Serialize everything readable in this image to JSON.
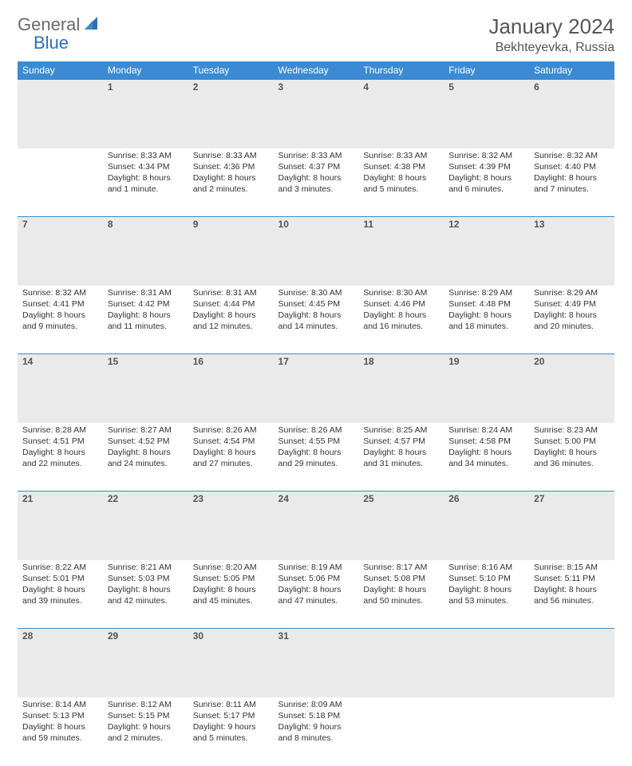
{
  "logo": {
    "part1": "General",
    "part2": "Blue"
  },
  "title": "January 2024",
  "location": "Bekhteyevka, Russia",
  "colors": {
    "header_bg": "#3b8bd4",
    "header_text": "#ffffff",
    "daynum_bg": "#eaeaea",
    "border": "#3b8bd4",
    "logo_gray": "#6a6a6a",
    "logo_blue": "#2f6fb3",
    "text": "#333333"
  },
  "weekdays": [
    "Sunday",
    "Monday",
    "Tuesday",
    "Wednesday",
    "Thursday",
    "Friday",
    "Saturday"
  ],
  "weeks": [
    [
      {
        "n": "",
        "sunrise": "",
        "sunset": "",
        "daylight": ""
      },
      {
        "n": "1",
        "sunrise": "Sunrise: 8:33 AM",
        "sunset": "Sunset: 4:34 PM",
        "daylight": "Daylight: 8 hours and 1 minute."
      },
      {
        "n": "2",
        "sunrise": "Sunrise: 8:33 AM",
        "sunset": "Sunset: 4:36 PM",
        "daylight": "Daylight: 8 hours and 2 minutes."
      },
      {
        "n": "3",
        "sunrise": "Sunrise: 8:33 AM",
        "sunset": "Sunset: 4:37 PM",
        "daylight": "Daylight: 8 hours and 3 minutes."
      },
      {
        "n": "4",
        "sunrise": "Sunrise: 8:33 AM",
        "sunset": "Sunset: 4:38 PM",
        "daylight": "Daylight: 8 hours and 5 minutes."
      },
      {
        "n": "5",
        "sunrise": "Sunrise: 8:32 AM",
        "sunset": "Sunset: 4:39 PM",
        "daylight": "Daylight: 8 hours and 6 minutes."
      },
      {
        "n": "6",
        "sunrise": "Sunrise: 8:32 AM",
        "sunset": "Sunset: 4:40 PM",
        "daylight": "Daylight: 8 hours and 7 minutes."
      }
    ],
    [
      {
        "n": "7",
        "sunrise": "Sunrise: 8:32 AM",
        "sunset": "Sunset: 4:41 PM",
        "daylight": "Daylight: 8 hours and 9 minutes."
      },
      {
        "n": "8",
        "sunrise": "Sunrise: 8:31 AM",
        "sunset": "Sunset: 4:42 PM",
        "daylight": "Daylight: 8 hours and 11 minutes."
      },
      {
        "n": "9",
        "sunrise": "Sunrise: 8:31 AM",
        "sunset": "Sunset: 4:44 PM",
        "daylight": "Daylight: 8 hours and 12 minutes."
      },
      {
        "n": "10",
        "sunrise": "Sunrise: 8:30 AM",
        "sunset": "Sunset: 4:45 PM",
        "daylight": "Daylight: 8 hours and 14 minutes."
      },
      {
        "n": "11",
        "sunrise": "Sunrise: 8:30 AM",
        "sunset": "Sunset: 4:46 PM",
        "daylight": "Daylight: 8 hours and 16 minutes."
      },
      {
        "n": "12",
        "sunrise": "Sunrise: 8:29 AM",
        "sunset": "Sunset: 4:48 PM",
        "daylight": "Daylight: 8 hours and 18 minutes."
      },
      {
        "n": "13",
        "sunrise": "Sunrise: 8:29 AM",
        "sunset": "Sunset: 4:49 PM",
        "daylight": "Daylight: 8 hours and 20 minutes."
      }
    ],
    [
      {
        "n": "14",
        "sunrise": "Sunrise: 8:28 AM",
        "sunset": "Sunset: 4:51 PM",
        "daylight": "Daylight: 8 hours and 22 minutes."
      },
      {
        "n": "15",
        "sunrise": "Sunrise: 8:27 AM",
        "sunset": "Sunset: 4:52 PM",
        "daylight": "Daylight: 8 hours and 24 minutes."
      },
      {
        "n": "16",
        "sunrise": "Sunrise: 8:26 AM",
        "sunset": "Sunset: 4:54 PM",
        "daylight": "Daylight: 8 hours and 27 minutes."
      },
      {
        "n": "17",
        "sunrise": "Sunrise: 8:26 AM",
        "sunset": "Sunset: 4:55 PM",
        "daylight": "Daylight: 8 hours and 29 minutes."
      },
      {
        "n": "18",
        "sunrise": "Sunrise: 8:25 AM",
        "sunset": "Sunset: 4:57 PM",
        "daylight": "Daylight: 8 hours and 31 minutes."
      },
      {
        "n": "19",
        "sunrise": "Sunrise: 8:24 AM",
        "sunset": "Sunset: 4:58 PM",
        "daylight": "Daylight: 8 hours and 34 minutes."
      },
      {
        "n": "20",
        "sunrise": "Sunrise: 8:23 AM",
        "sunset": "Sunset: 5:00 PM",
        "daylight": "Daylight: 8 hours and 36 minutes."
      }
    ],
    [
      {
        "n": "21",
        "sunrise": "Sunrise: 8:22 AM",
        "sunset": "Sunset: 5:01 PM",
        "daylight": "Daylight: 8 hours and 39 minutes."
      },
      {
        "n": "22",
        "sunrise": "Sunrise: 8:21 AM",
        "sunset": "Sunset: 5:03 PM",
        "daylight": "Daylight: 8 hours and 42 minutes."
      },
      {
        "n": "23",
        "sunrise": "Sunrise: 8:20 AM",
        "sunset": "Sunset: 5:05 PM",
        "daylight": "Daylight: 8 hours and 45 minutes."
      },
      {
        "n": "24",
        "sunrise": "Sunrise: 8:19 AM",
        "sunset": "Sunset: 5:06 PM",
        "daylight": "Daylight: 8 hours and 47 minutes."
      },
      {
        "n": "25",
        "sunrise": "Sunrise: 8:17 AM",
        "sunset": "Sunset: 5:08 PM",
        "daylight": "Daylight: 8 hours and 50 minutes."
      },
      {
        "n": "26",
        "sunrise": "Sunrise: 8:16 AM",
        "sunset": "Sunset: 5:10 PM",
        "daylight": "Daylight: 8 hours and 53 minutes."
      },
      {
        "n": "27",
        "sunrise": "Sunrise: 8:15 AM",
        "sunset": "Sunset: 5:11 PM",
        "daylight": "Daylight: 8 hours and 56 minutes."
      }
    ],
    [
      {
        "n": "28",
        "sunrise": "Sunrise: 8:14 AM",
        "sunset": "Sunset: 5:13 PM",
        "daylight": "Daylight: 8 hours and 59 minutes."
      },
      {
        "n": "29",
        "sunrise": "Sunrise: 8:12 AM",
        "sunset": "Sunset: 5:15 PM",
        "daylight": "Daylight: 9 hours and 2 minutes."
      },
      {
        "n": "30",
        "sunrise": "Sunrise: 8:11 AM",
        "sunset": "Sunset: 5:17 PM",
        "daylight": "Daylight: 9 hours and 5 minutes."
      },
      {
        "n": "31",
        "sunrise": "Sunrise: 8:09 AM",
        "sunset": "Sunset: 5:18 PM",
        "daylight": "Daylight: 9 hours and 8 minutes."
      },
      {
        "n": "",
        "sunrise": "",
        "sunset": "",
        "daylight": ""
      },
      {
        "n": "",
        "sunrise": "",
        "sunset": "",
        "daylight": ""
      },
      {
        "n": "",
        "sunrise": "",
        "sunset": "",
        "daylight": ""
      }
    ]
  ]
}
